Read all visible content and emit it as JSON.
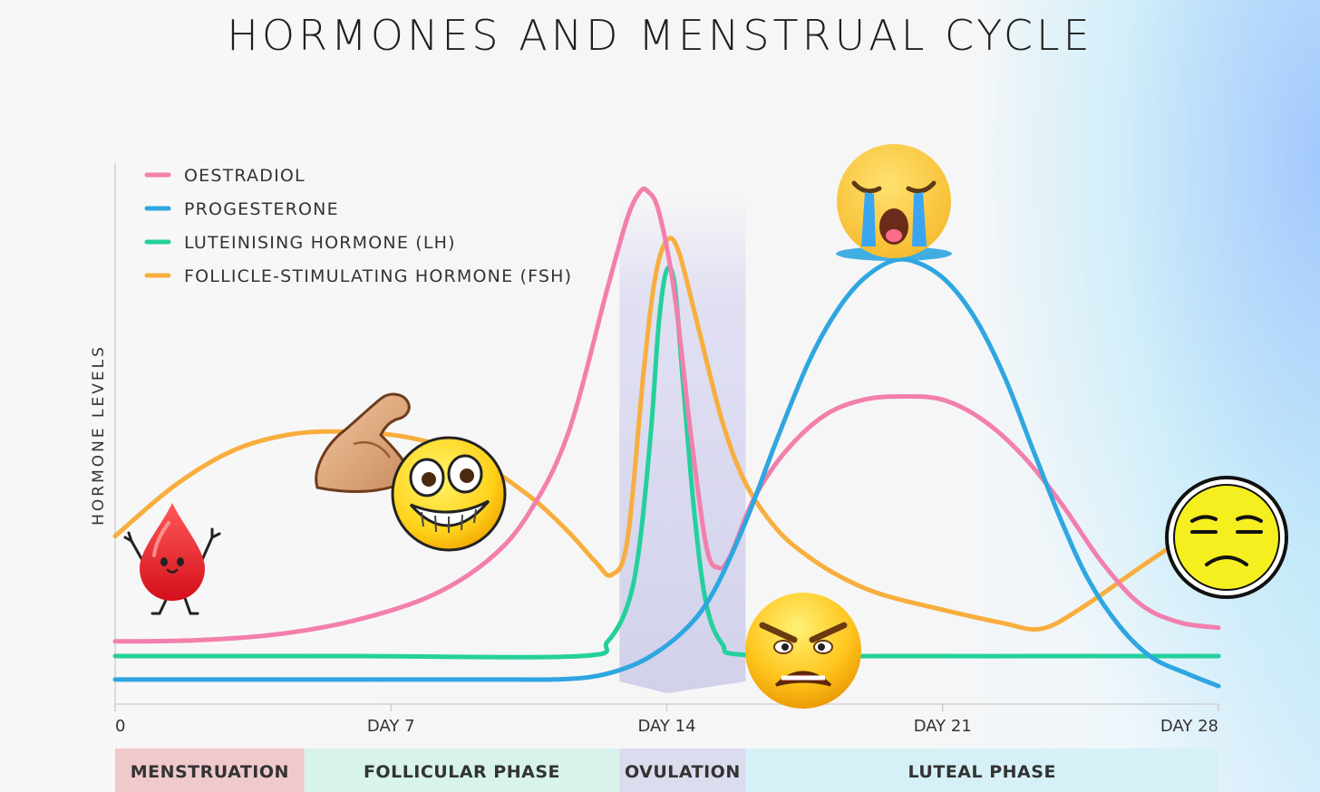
{
  "title": "HORMONES AND MENSTRUAL CYCLE",
  "chart_data": {
    "type": "line",
    "title": "HORMONES AND MENSTRUAL CYCLE",
    "xlabel": "",
    "ylabel": "HORMONE LEVELS",
    "xlim": [
      0,
      28
    ],
    "ylim": [
      0,
      100
    ],
    "x_ticks": [
      {
        "value": 0,
        "label": "0"
      },
      {
        "value": 7,
        "label": "DAY 7"
      },
      {
        "value": 14,
        "label": "DAY 14"
      },
      {
        "value": 21,
        "label": "DAY 21"
      },
      {
        "value": 28,
        "label": "DAY 28"
      }
    ],
    "legend_position": "top-left",
    "grid": false,
    "series": [
      {
        "name": "OESTRADIOL",
        "color": "#f27fac",
        "points": [
          [
            0,
            11.5
          ],
          [
            2,
            11.7
          ],
          [
            4,
            12.7
          ],
          [
            6,
            15.2
          ],
          [
            8,
            19.8
          ],
          [
            9.5,
            26.6
          ],
          [
            10.5,
            35.0
          ],
          [
            11.5,
            49.7
          ],
          [
            12.5,
            76.4
          ],
          [
            13,
            89.1
          ],
          [
            13.3,
            93.7
          ],
          [
            13.5,
            94.1
          ],
          [
            13.8,
            90.2
          ],
          [
            14.2,
            75.0
          ],
          [
            14.6,
            50.0
          ],
          [
            15,
            29.0
          ],
          [
            15.3,
            25.0
          ],
          [
            15.6,
            27.0
          ],
          [
            16.2,
            37.5
          ],
          [
            17,
            46.2
          ],
          [
            18,
            52.9
          ],
          [
            19,
            55.8
          ],
          [
            20,
            56.4
          ],
          [
            21,
            55.8
          ],
          [
            22,
            52.2
          ],
          [
            23,
            45.8
          ],
          [
            24,
            36.9
          ],
          [
            25,
            26.4
          ],
          [
            26,
            18.4
          ],
          [
            27,
            15.0
          ],
          [
            28,
            14.0
          ]
        ]
      },
      {
        "name": "PROGESTERONE",
        "color": "#2ea6e0",
        "points": [
          [
            0,
            4.5
          ],
          [
            5,
            4.5
          ],
          [
            10,
            4.5
          ],
          [
            11.5,
            4.6
          ],
          [
            12.5,
            5.6
          ],
          [
            13.5,
            8.4
          ],
          [
            14.5,
            13.9
          ],
          [
            15.2,
            20.8
          ],
          [
            16,
            33.4
          ],
          [
            16.8,
            48.6
          ],
          [
            17.6,
            62.7
          ],
          [
            18.3,
            71.9
          ],
          [
            19,
            78.0
          ],
          [
            19.8,
            81.4
          ],
          [
            20.5,
            80.5
          ],
          [
            21.2,
            76.8
          ],
          [
            21.9,
            69.8
          ],
          [
            22.6,
            59.5
          ],
          [
            23.3,
            46.5
          ],
          [
            24,
            33.8
          ],
          [
            24.7,
            22.8
          ],
          [
            25.5,
            14.2
          ],
          [
            26.3,
            8.6
          ],
          [
            27.2,
            5.6
          ],
          [
            28,
            3.3
          ]
        ]
      },
      {
        "name": "LUTEINISING HORMONE (LH)",
        "color": "#24d09b",
        "points": [
          [
            0,
            8.8
          ],
          [
            6,
            8.8
          ],
          [
            11.8,
            8.8
          ],
          [
            12.5,
            11.5
          ],
          [
            13,
            18.0
          ],
          [
            13.3,
            28.7
          ],
          [
            13.6,
            50.2
          ],
          [
            13.8,
            70.0
          ],
          [
            14,
            79.6
          ],
          [
            14.2,
            76.8
          ],
          [
            14.4,
            60.0
          ],
          [
            14.7,
            35.0
          ],
          [
            15,
            18.4
          ],
          [
            15.4,
            11.1
          ],
          [
            16,
            9.0
          ],
          [
            20,
            8.8
          ],
          [
            25,
            8.8
          ],
          [
            28,
            8.8
          ]
        ]
      },
      {
        "name": "FOLLICLE-STIMULATING HORMONE (FSH)",
        "color": "#f8ae3e",
        "points": [
          [
            0,
            30.8
          ],
          [
            1.5,
            40.0
          ],
          [
            3,
            46.5
          ],
          [
            4.5,
            49.5
          ],
          [
            6,
            49.9
          ],
          [
            7.5,
            48.8
          ],
          [
            9,
            45.4
          ],
          [
            10.5,
            38.2
          ],
          [
            11.5,
            31.6
          ],
          [
            12.2,
            26.0
          ],
          [
            12.6,
            23.7
          ],
          [
            13,
            30.0
          ],
          [
            13.4,
            60.0
          ],
          [
            13.7,
            78.0
          ],
          [
            14,
            85.0
          ],
          [
            14.3,
            83.0
          ],
          [
            14.8,
            69.0
          ],
          [
            15.4,
            52.0
          ],
          [
            16,
            40.5
          ],
          [
            16.8,
            32.0
          ],
          [
            17.6,
            27.0
          ],
          [
            18.5,
            23.0
          ],
          [
            19.5,
            20.0
          ],
          [
            21,
            17.3
          ],
          [
            22.5,
            14.9
          ],
          [
            23.5,
            13.8
          ],
          [
            24.5,
            17.5
          ],
          [
            26,
            25.0
          ],
          [
            27,
            30.0
          ],
          [
            28,
            36.0
          ]
        ]
      }
    ],
    "phases": [
      {
        "name": "MENSTRUATION",
        "start": 0,
        "end": 4.8,
        "color": "#f0c9cd"
      },
      {
        "name": "FOLLICULAR PHASE",
        "start": 4.8,
        "end": 12.8,
        "color": "#d7f3ec"
      },
      {
        "name": "OVULATION",
        "start": 12.8,
        "end": 16,
        "color": "#dcdcef"
      },
      {
        "name": "LUTEAL PHASE",
        "start": 16,
        "end": 28,
        "color": "#d5f1f7"
      }
    ],
    "ovulation_band": [
      12.8,
      16
    ]
  },
  "icons": [
    {
      "name": "blood-drop-icon",
      "glyph": "💧"
    },
    {
      "name": "flexing-happy-face-icon",
      "glyph": "😁"
    },
    {
      "name": "crying-face-icon",
      "glyph": "😭"
    },
    {
      "name": "angry-face-icon",
      "glyph": "😠"
    },
    {
      "name": "unamused-face-icon",
      "glyph": "😒"
    }
  ]
}
